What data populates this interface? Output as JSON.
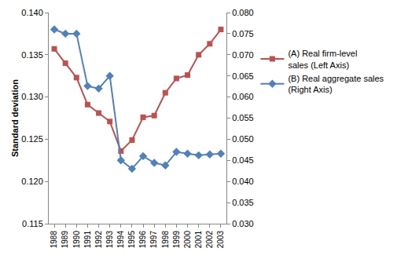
{
  "chart_data": {
    "type": "line",
    "y_label": "Standard deviation",
    "categories": [
      "1988",
      "1989",
      "1990",
      "1991",
      "1992",
      "1993",
      "1994",
      "1995",
      "1996",
      "1997",
      "1998",
      "1999",
      "2000",
      "2001",
      "2002",
      "2003"
    ],
    "series": [
      {
        "name": "(A) Real firm-level sales (Left Axis)",
        "color": "#C0504D",
        "marker": "square",
        "axis": "y",
        "values": [
          0.1357,
          0.134,
          0.1323,
          0.1291,
          0.1281,
          0.1271,
          0.1236,
          0.1249,
          0.1276,
          0.1278,
          0.1305,
          0.1322,
          0.1326,
          0.135,
          0.1363,
          0.138
        ]
      },
      {
        "name": "(B) Real aggregate sales (Right Axis)",
        "color": "#4F81BD",
        "marker": "diamond",
        "axis": "y2",
        "values": [
          0.076,
          0.075,
          0.075,
          0.0626,
          0.062,
          0.065,
          0.045,
          0.043,
          0.046,
          0.0444,
          0.0438,
          0.047,
          0.0466,
          0.0462,
          0.0464,
          0.0466
        ]
      }
    ],
    "ylim": [
      0.115,
      0.14
    ],
    "yticks": [
      0.115,
      {
        "value": 0.12,
        "label": "0.120"
      },
      0.125,
      {
        "value": 0.13,
        "label": "0.130"
      },
      0.135,
      {
        "value": 0.14,
        "label": "0.140"
      }
    ],
    "y2lim": [
      0.03,
      0.08
    ],
    "y2ticks": [
      {
        "value": 0.03,
        "label": "0.030"
      },
      0.035,
      {
        "value": 0.04,
        "label": "0.040"
      },
      0.045,
      {
        "value": 0.05,
        "label": "0.050"
      },
      0.055,
      {
        "value": 0.06,
        "label": "0.060"
      },
      0.065,
      {
        "value": 0.07,
        "label": "0.070"
      },
      0.075,
      {
        "value": 0.08,
        "label": "0.080"
      }
    ],
    "grid": false,
    "legend": "right"
  }
}
